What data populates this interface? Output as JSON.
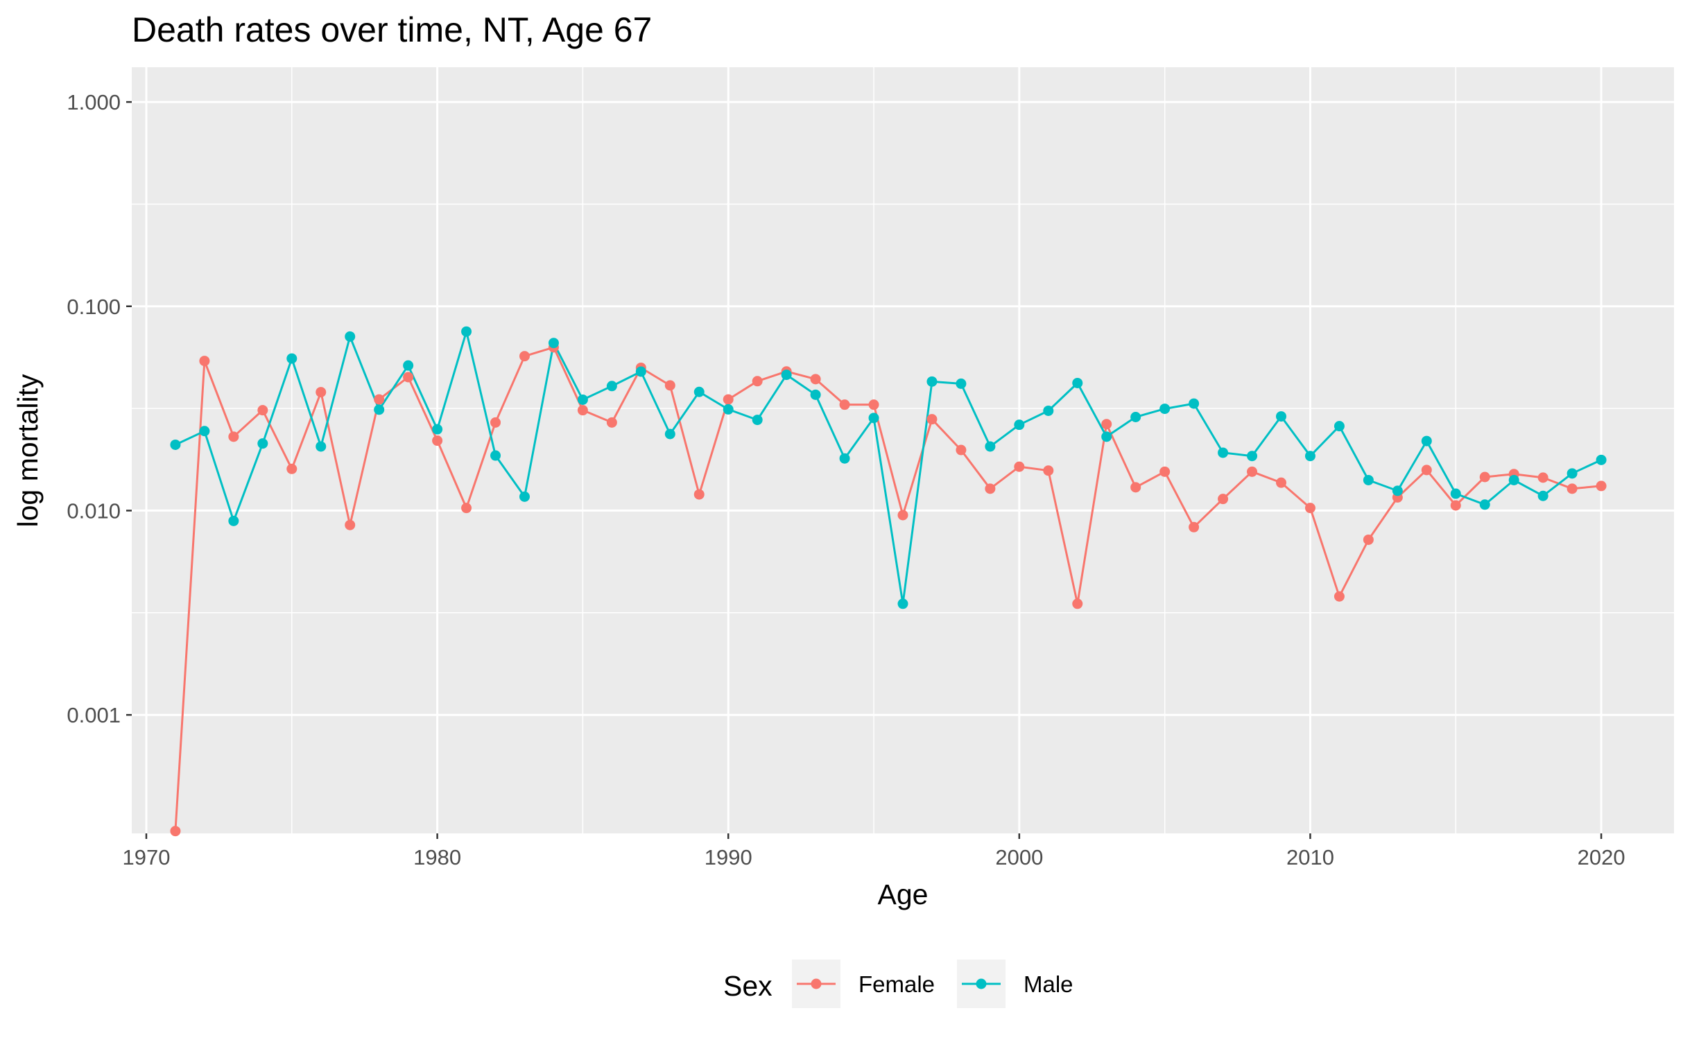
{
  "chart_data": {
    "type": "line",
    "title": "Death rates over time, NT, Age 67",
    "xlabel": "Age",
    "ylabel": "log mortality",
    "y_scale": "log10",
    "xlim": [
      1969.5,
      2022.5
    ],
    "ylim_log10": [
      -3.58,
      0.17
    ],
    "x_ticks": [
      1970,
      1980,
      1990,
      2000,
      2010,
      2020
    ],
    "x_tick_labels": [
      "1970",
      "1980",
      "1990",
      "2000",
      "2010",
      "2020"
    ],
    "y_ticks": [
      0.001,
      0.01,
      0.1,
      1
    ],
    "y_tick_labels": [
      "0.001",
      "0.010",
      "0.100",
      "1.000"
    ],
    "grid": true,
    "legend": {
      "title": "Sex",
      "position": "bottom"
    },
    "x": [
      1971,
      1972,
      1973,
      1974,
      1975,
      1976,
      1977,
      1978,
      1979,
      1980,
      1981,
      1982,
      1983,
      1984,
      1985,
      1986,
      1987,
      1988,
      1989,
      1990,
      1991,
      1992,
      1993,
      1994,
      1995,
      1996,
      1997,
      1998,
      1999,
      2000,
      2001,
      2002,
      2003,
      2004,
      2005,
      2006,
      2007,
      2008,
      2009,
      2010,
      2011,
      2012,
      2013,
      2014,
      2015,
      2016,
      2017,
      2018,
      2019,
      2020
    ],
    "series": [
      {
        "name": "Female",
        "color": "#F8766D",
        "values": [
          0.00027,
          0.054,
          0.023,
          0.031,
          0.016,
          0.038,
          0.0085,
          0.035,
          0.045,
          0.022,
          0.0103,
          0.027,
          0.057,
          0.063,
          0.031,
          0.027,
          0.05,
          0.041,
          0.012,
          0.035,
          0.043,
          0.048,
          0.044,
          0.033,
          0.033,
          0.0095,
          0.028,
          0.0198,
          0.0128,
          0.0164,
          0.0157,
          0.0035,
          0.0265,
          0.013,
          0.0155,
          0.0083,
          0.0114,
          0.0155,
          0.0137,
          0.0103,
          0.0038,
          0.0072,
          0.0116,
          0.0158,
          0.0106,
          0.0146,
          0.0151,
          0.0145,
          0.0128,
          0.0132
        ]
      },
      {
        "name": "Male",
        "color": "#00BFC4",
        "values": [
          0.021,
          0.0245,
          0.0089,
          0.0213,
          0.0555,
          0.0206,
          0.0711,
          0.0312,
          0.0513,
          0.025,
          0.0752,
          0.0186,
          0.0117,
          0.0661,
          0.0349,
          0.0407,
          0.0479,
          0.0237,
          0.0381,
          0.0313,
          0.0278,
          0.0462,
          0.0369,
          0.018,
          0.0284,
          0.0035,
          0.0428,
          0.0418,
          0.0206,
          0.0263,
          0.0308,
          0.0421,
          0.023,
          0.0287,
          0.0315,
          0.0334,
          0.0192,
          0.0185,
          0.0289,
          0.0185,
          0.0259,
          0.0141,
          0.0125,
          0.0219,
          0.0121,
          0.0107,
          0.0141,
          0.0118,
          0.0152,
          0.0177
        ]
      }
    ]
  }
}
